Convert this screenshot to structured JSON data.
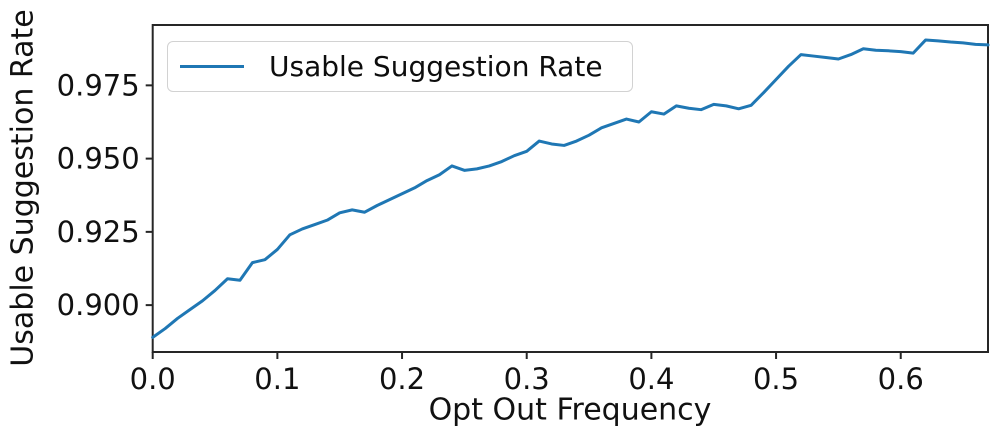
{
  "chart_data": {
    "type": "line",
    "title": "",
    "xlabel": "Opt Out Frequency",
    "ylabel": "Usable Suggestion Rate",
    "legend": {
      "entries": [
        "Usable Suggestion Rate"
      ],
      "position": "upper left"
    },
    "grid": false,
    "xlim": [
      0.0,
      0.67
    ],
    "ylim": [
      0.884,
      0.9956
    ],
    "xticks": [
      0.0,
      0.1,
      0.2,
      0.3,
      0.4,
      0.5,
      0.6
    ],
    "xtick_labels": [
      "0.0",
      "0.1",
      "0.2",
      "0.3",
      "0.4",
      "0.5",
      "0.6"
    ],
    "yticks": [
      0.9,
      0.925,
      0.95,
      0.975
    ],
    "ytick_labels": [
      "0.900",
      "0.925",
      "0.950",
      "0.975"
    ],
    "series": [
      {
        "name": "Usable Suggestion Rate",
        "color": "#1f77b4",
        "x": [
          0.0,
          0.01,
          0.02,
          0.03,
          0.04,
          0.05,
          0.06,
          0.07,
          0.08,
          0.09,
          0.1,
          0.11,
          0.12,
          0.13,
          0.14,
          0.15,
          0.16,
          0.17,
          0.18,
          0.19,
          0.2,
          0.21,
          0.22,
          0.23,
          0.24,
          0.25,
          0.26,
          0.27,
          0.28,
          0.29,
          0.3,
          0.31,
          0.32,
          0.33,
          0.34,
          0.35,
          0.36,
          0.37,
          0.38,
          0.39,
          0.4,
          0.41,
          0.42,
          0.43,
          0.44,
          0.45,
          0.46,
          0.47,
          0.48,
          0.49,
          0.5,
          0.51,
          0.52,
          0.53,
          0.54,
          0.55,
          0.56,
          0.57,
          0.58,
          0.59,
          0.6,
          0.61,
          0.62,
          0.63,
          0.64,
          0.65,
          0.66,
          0.67
        ],
        "y": [
          0.889,
          0.892,
          0.8955,
          0.8985,
          0.9015,
          0.905,
          0.909,
          0.9085,
          0.9145,
          0.9155,
          0.919,
          0.924,
          0.926,
          0.9275,
          0.929,
          0.9315,
          0.9325,
          0.9317,
          0.934,
          0.936,
          0.938,
          0.94,
          0.9425,
          0.9445,
          0.9475,
          0.946,
          0.9465,
          0.9475,
          0.949,
          0.951,
          0.9525,
          0.956,
          0.955,
          0.9545,
          0.956,
          0.958,
          0.9605,
          0.962,
          0.9635,
          0.9625,
          0.966,
          0.9652,
          0.968,
          0.9672,
          0.9667,
          0.9685,
          0.968,
          0.967,
          0.9682,
          0.9725,
          0.977,
          0.9815,
          0.9855,
          0.985,
          0.9845,
          0.984,
          0.9855,
          0.9875,
          0.987,
          0.9868,
          0.9865,
          0.986,
          0.9905,
          0.9902,
          0.9898,
          0.9895,
          0.989,
          0.9888
        ]
      }
    ]
  }
}
